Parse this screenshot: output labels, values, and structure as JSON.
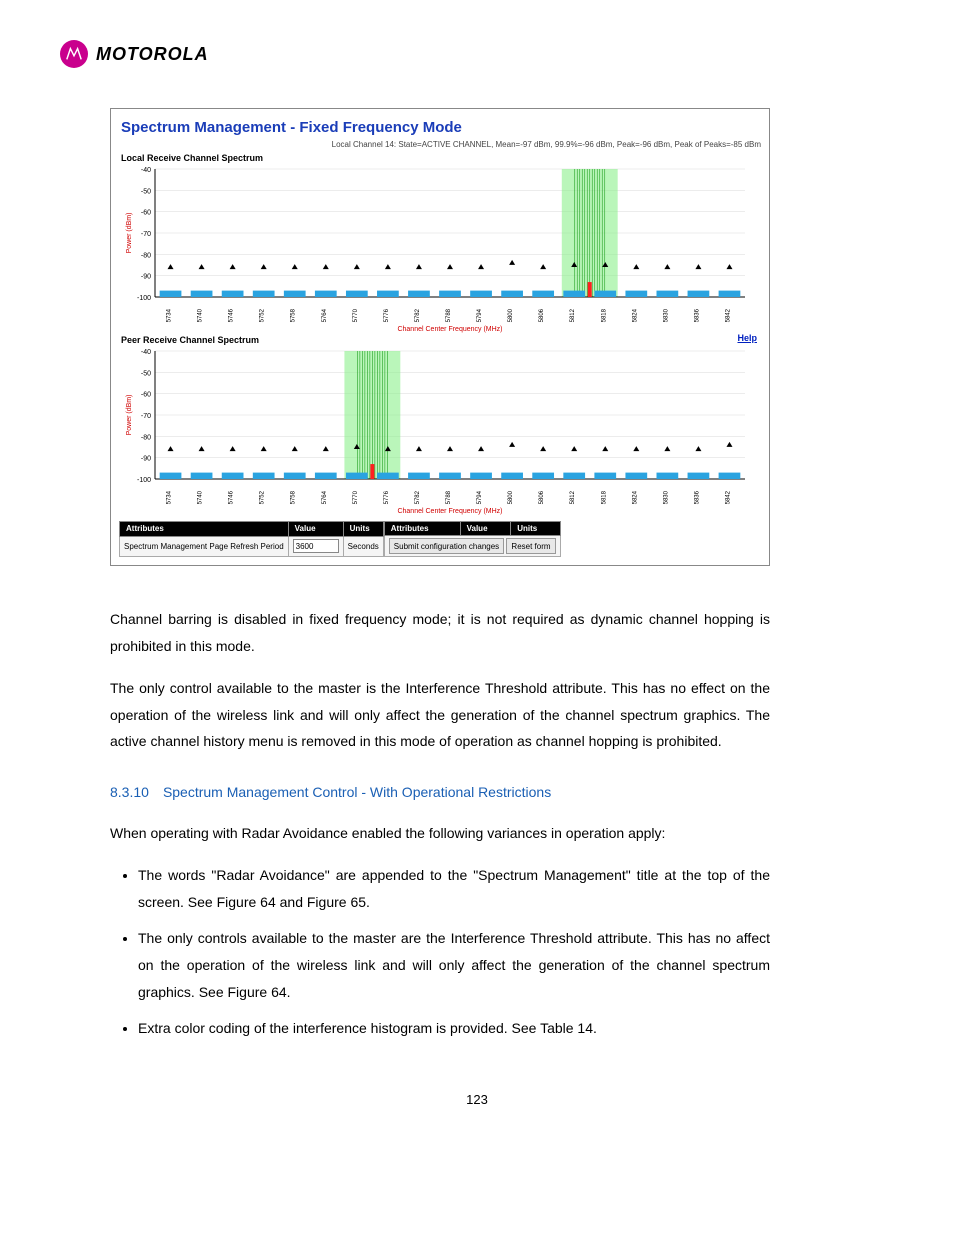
{
  "logo": {
    "word": "MOTOROLA",
    "badge_bg": "#c9008d"
  },
  "figure": {
    "title": "Spectrum Management - Fixed Frequency Mode",
    "subtitle": "Local Channel 14: State=ACTIVE CHANNEL, Mean=-97 dBm, 99.9%=-96 dBm, Peak=-96 dBm, Peak of Peaks=-85 dBm",
    "help": "Help",
    "charts": [
      {
        "label": "Local Receive Channel Spectrum",
        "axis_label_y": "Power (dBm)",
        "axis_label_x": "Channel Center Frequency (MHz)",
        "ylim": [
          -100,
          -40
        ],
        "ytick_step": 10,
        "y_color": "#d00000",
        "x_color": "#d00000",
        "grid_color": "#d9d9d9",
        "bar_color": "#2aa3e0",
        "tri_color": "#000000",
        "highlight_fill": "#8cf08c",
        "highlight_stroke": "#20a020",
        "highlight_inner": "#ff2020",
        "highlight_channel": 14,
        "categories": [
          "5734",
          "5740",
          "5746",
          "5752",
          "5758",
          "5764",
          "5770",
          "5776",
          "5782",
          "5788",
          "5794",
          "5800",
          "5806",
          "5812",
          "5818",
          "5824",
          "5830",
          "5836",
          "5842"
        ],
        "bar_values": [
          -97,
          -97,
          -97,
          -97,
          -97,
          -97,
          -97,
          -97,
          -97,
          -97,
          -97,
          -97,
          -97,
          -97,
          -97,
          -97,
          -97,
          -97,
          -97
        ],
        "tri_values": [
          -86,
          -86,
          -86,
          -86,
          -86,
          -86,
          -86,
          -86,
          -86,
          -86,
          -86,
          -84,
          -86,
          -85,
          -85,
          -86,
          -86,
          -86,
          -86
        ]
      },
      {
        "label": "Peer Receive Channel Spectrum",
        "axis_label_y": "Power (dBm)",
        "axis_label_x": "Channel Center Frequency (MHz)",
        "ylim": [
          -100,
          -40
        ],
        "ytick_step": 10,
        "y_color": "#d00000",
        "x_color": "#d00000",
        "grid_color": "#d9d9d9",
        "bar_color": "#2aa3e0",
        "tri_color": "#000000",
        "highlight_fill": "#8cf08c",
        "highlight_stroke": "#20a020",
        "highlight_inner": "#ff2020",
        "highlight_channel": 7,
        "categories": [
          "5734",
          "5740",
          "5746",
          "5752",
          "5758",
          "5764",
          "5770",
          "5776",
          "5782",
          "5788",
          "5794",
          "5800",
          "5806",
          "5812",
          "5818",
          "5824",
          "5830",
          "5836",
          "5842"
        ],
        "bar_values": [
          -97,
          -97,
          -97,
          -97,
          -97,
          -97,
          -97,
          -97,
          -97,
          -97,
          -97,
          -97,
          -97,
          -97,
          -97,
          -97,
          -97,
          -97,
          -97
        ],
        "tri_values": [
          -86,
          -86,
          -86,
          -86,
          -86,
          -86,
          -85,
          -86,
          -86,
          -86,
          -86,
          -84,
          -86,
          -86,
          -86,
          -86,
          -86,
          -86,
          -84
        ]
      }
    ],
    "attr_table": {
      "headers_left": [
        "Attributes",
        "Value",
        "Units"
      ],
      "headers_right": [
        "Attributes",
        "Value",
        "Units"
      ],
      "row_label": "Spectrum Management Page Refresh Period",
      "row_value": "3600",
      "row_units": "Seconds",
      "btn_submit": "Submit configuration changes",
      "btn_reset": "Reset form"
    }
  },
  "body": {
    "p1": "Channel barring is disabled in fixed frequency mode; it is not required as dynamic channel hopping is prohibited in this mode.",
    "p2": "The only control available to the master is the Interference Threshold attribute. This has no effect on the operation of the wireless link and will only affect the generation of the channel spectrum graphics. The active channel history menu is removed in this mode of operation as channel hopping is prohibited.",
    "sec_num": "8.3.10",
    "sec_title": "Spectrum Management Control - With Operational Restrictions",
    "p3": "When operating with Radar Avoidance enabled the following variances in operation apply:",
    "bullets": [
      "The words \"Radar Avoidance\" are appended to the \"Spectrum Management\" title at the top of the screen. See Figure 64 and Figure 65.",
      "The only controls available to the master are the Interference Threshold attribute. This has no affect on the operation of the wireless link and will only affect the generation of the channel spectrum graphics. See Figure 64.",
      "Extra color coding of the interference histogram is provided. See Table 14."
    ]
  },
  "page_number": "123"
}
